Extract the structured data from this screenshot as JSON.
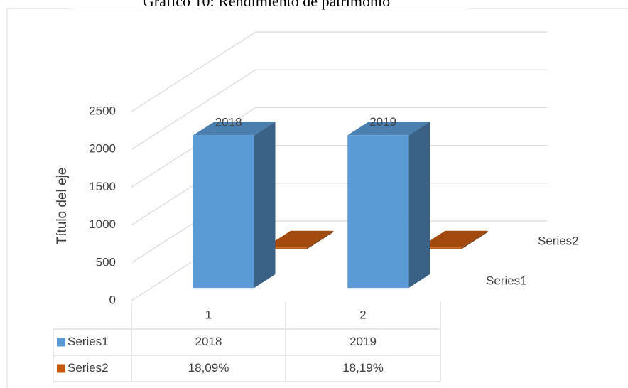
{
  "chart_data": {
    "type": "bar3d",
    "title": "Gráfico 10: Rendimiento de patrimonio",
    "y_axis_label": "Título del eje",
    "categories": [
      "1",
      "2"
    ],
    "series": [
      {
        "name": "Series1",
        "color": "#5b9bd5",
        "values": [
          2018,
          2019
        ]
      },
      {
        "name": "Series2",
        "color": "#c55a11",
        "values": [
          18.09,
          18.19
        ],
        "value_labels": [
          "18,09%",
          "18,19%"
        ]
      }
    ],
    "ylim": [
      0,
      2500
    ],
    "yticks": [
      0,
      500,
      1000,
      1500,
      2000,
      2500
    ],
    "grid": true
  }
}
